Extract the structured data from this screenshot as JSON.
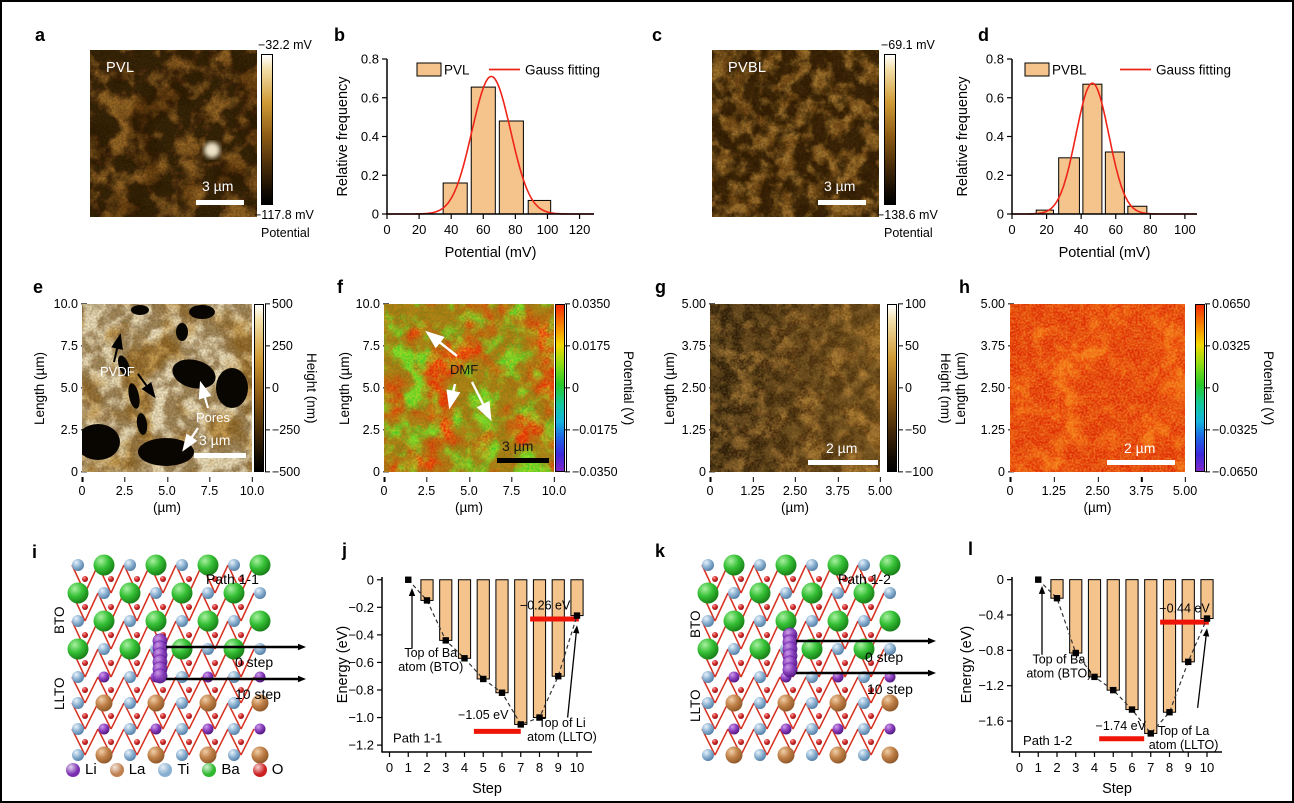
{
  "panels": {
    "a": {
      "letter": "a",
      "tag": "PVL",
      "scalebar": "3 µm",
      "cb_top": "−32.2 mV",
      "cb_bottom": "−117.8 mV",
      "cb_caption": "Potential"
    },
    "b": {
      "letter": "b"
    },
    "c": {
      "letter": "c",
      "tag": "PVBL",
      "scalebar": "3 µm",
      "cb_top": "−69.1 mV",
      "cb_bottom": "−138.6 mV",
      "cb_caption": "Potential"
    },
    "d": {
      "letter": "d"
    },
    "e": {
      "letter": "e",
      "ylabel": "Length (µm)",
      "xlabel": "(µm)",
      "yticks": [
        "10.0",
        "7.5",
        "5.0",
        "2.5",
        "0"
      ],
      "xticks": [
        "0",
        "2.5",
        "5.0",
        "7.5",
        "10.0"
      ],
      "cbticks": [
        "500",
        "250",
        "0",
        "−250",
        "−500"
      ],
      "cblabel": "Height (nm)",
      "ann_pvdf": "PVDF",
      "ann_pores": "Pores",
      "scalebar": "3 µm"
    },
    "f": {
      "letter": "f",
      "ylabel": "Length (µm)",
      "xlabel": "(µm)",
      "yticks": [
        "10.0",
        "7.5",
        "5.0",
        "2.5",
        "0"
      ],
      "xticks": [
        "0",
        "2.5",
        "5.0",
        "7.5",
        "10.0"
      ],
      "cbticks": [
        "0.0350",
        "0.0175",
        "0",
        "−0.0175",
        "−0.0350"
      ],
      "cblabel": "Potential (V)",
      "ann_dmf": "DMF",
      "scalebar": "3 µm"
    },
    "g": {
      "letter": "g",
      "ylabel": "Length (µm)",
      "xlabel": "(µm)",
      "yticks": [
        "5.00",
        "3.75",
        "2.50",
        "1.25",
        "0"
      ],
      "xticks": [
        "0",
        "1.25",
        "2.50",
        "3.75",
        "5.00"
      ],
      "cbticks": [
        "100",
        "50",
        "0",
        "−50",
        "−100"
      ],
      "cblabel": "Height (nm)",
      "scalebar": "2 µm"
    },
    "h": {
      "letter": "h",
      "ylabel": "Length (µm)",
      "xlabel": "(µm)",
      "yticks": [
        "5.00",
        "3.75",
        "2.50",
        "1.25",
        "0"
      ],
      "xticks": [
        "0",
        "1.25",
        "2.50",
        "3.75",
        "5.00"
      ],
      "cbticks": [
        "0.0650",
        "0.0325",
        "0",
        "−0.0325",
        "−0.0650"
      ],
      "cblabel": "Potential (V)",
      "scalebar": "2 µm"
    },
    "i": {
      "letter": "i",
      "path_label": "Path 1-1",
      "layer_top": "BTO",
      "layer_bottom": "LLTO",
      "arrow0": "0 step",
      "arrow10": "10 step",
      "legend": [
        {
          "element": "Li",
          "color": "#7a2fb0"
        },
        {
          "element": "La",
          "color": "#c08050"
        },
        {
          "element": "Ti",
          "color": "#86aed0"
        },
        {
          "element": "Ba",
          "color": "#2eb82e"
        },
        {
          "element": "O",
          "color": "#cc1f1f"
        }
      ]
    },
    "j": {
      "letter": "j"
    },
    "k": {
      "letter": "k",
      "path_label": "Path 1-2",
      "layer_top": "BTO",
      "layer_bottom": "LLTO",
      "arrow0": "0 step",
      "arrow10": "10 step"
    },
    "l": {
      "letter": "l"
    }
  },
  "chart_data": [
    {
      "id": "chart-b",
      "panel": "b",
      "type": "histogram",
      "xlabel": "Potential (mV)",
      "ylabel": "Relative frequency",
      "xlim": [
        0,
        129
      ],
      "ylim": [
        0,
        0.8
      ],
      "xticks": [
        {
          "v": 0,
          "l": "0"
        },
        {
          "v": 20,
          "l": "20"
        },
        {
          "v": 40,
          "l": "40"
        },
        {
          "v": 60,
          "l": "60"
        },
        {
          "v": 80,
          "l": "80"
        },
        {
          "v": 100,
          "l": "100"
        },
        {
          "v": 120,
          "l": "120"
        }
      ],
      "yticks": [
        {
          "v": 0,
          "l": "0"
        },
        {
          "v": 0.2,
          "l": "0.2"
        },
        {
          "v": 0.4,
          "l": "0.4"
        },
        {
          "v": 0.6,
          "l": "0.6"
        },
        {
          "v": 0.8,
          "l": "0.8"
        }
      ],
      "legend": {
        "bar": "PVL",
        "line": "Gauss fitting"
      },
      "bars": [
        {
          "center": 42.5,
          "width": 15,
          "height": 0.16
        },
        {
          "center": 60,
          "width": 15,
          "height": 0.655
        },
        {
          "center": 77.5,
          "width": 15,
          "height": 0.48
        },
        {
          "center": 95,
          "width": 14,
          "height": 0.07
        }
      ],
      "gauss": {
        "mean": 65,
        "sigma": 12,
        "amp": 0.71
      },
      "bar_color": "#f5c38c",
      "line_color": "#ee2418"
    },
    {
      "id": "chart-d",
      "panel": "d",
      "type": "histogram",
      "xlabel": "Potential (mV)",
      "ylabel": "Relative frequency",
      "xlim": [
        0,
        107
      ],
      "ylim": [
        0,
        0.8
      ],
      "xticks": [
        {
          "v": 0,
          "l": "0"
        },
        {
          "v": 20,
          "l": "20"
        },
        {
          "v": 40,
          "l": "40"
        },
        {
          "v": 60,
          "l": "60"
        },
        {
          "v": 80,
          "l": "80"
        },
        {
          "v": 100,
          "l": "100"
        }
      ],
      "yticks": [
        {
          "v": 0,
          "l": "0"
        },
        {
          "v": 0.2,
          "l": "0.2"
        },
        {
          "v": 0.4,
          "l": "0.4"
        },
        {
          "v": 0.6,
          "l": "0.6"
        },
        {
          "v": 0.8,
          "l": "0.8"
        }
      ],
      "legend": {
        "bar": "PVBL",
        "line": "Gauss fitting"
      },
      "bars": [
        {
          "center": 19,
          "width": 10,
          "height": 0.02
        },
        {
          "center": 33,
          "width": 12,
          "height": 0.29
        },
        {
          "center": 46.5,
          "width": 11,
          "height": 0.67
        },
        {
          "center": 59.5,
          "width": 11,
          "height": 0.32
        },
        {
          "center": 72.5,
          "width": 11,
          "height": 0.04
        }
      ],
      "gauss": {
        "mean": 46.5,
        "sigma": 9.5,
        "amp": 0.675
      },
      "bar_color": "#f5c38c",
      "line_color": "#ee2418"
    },
    {
      "id": "chart-j",
      "panel": "j",
      "type": "step-bar",
      "xlabel": "Step",
      "ylabel": "Energy (eV)",
      "xlim": [
        -0.4,
        10.8
      ],
      "ylim": [
        -1.25,
        0.02
      ],
      "xticks": [
        {
          "v": 0,
          "l": "0"
        },
        {
          "v": 1,
          "l": "1"
        },
        {
          "v": 2,
          "l": "2"
        },
        {
          "v": 3,
          "l": "3"
        },
        {
          "v": 4,
          "l": "4"
        },
        {
          "v": 5,
          "l": "5"
        },
        {
          "v": 6,
          "l": "6"
        },
        {
          "v": 7,
          "l": "7"
        },
        {
          "v": 8,
          "l": "8"
        },
        {
          "v": 9,
          "l": "9"
        },
        {
          "v": 10,
          "l": "10"
        }
      ],
      "yticks": [
        {
          "v": 0,
          "l": "0"
        },
        {
          "v": -0.2,
          "l": "−0.2"
        },
        {
          "v": -0.4,
          "l": "−0.4"
        },
        {
          "v": -0.6,
          "l": "−0.6"
        },
        {
          "v": -0.8,
          "l": "−0.8"
        },
        {
          "v": -1.0,
          "l": "−1.0"
        },
        {
          "v": -1.2,
          "l": "−1.2"
        }
      ],
      "steps": [
        1,
        2,
        3,
        4,
        5,
        6,
        7,
        8,
        9,
        10
      ],
      "values": [
        0,
        -0.15,
        -0.44,
        -0.57,
        -0.72,
        -0.82,
        -1.05,
        -1.0,
        -0.7,
        -0.26
      ],
      "bar_width": 0.65,
      "bar_color": "#f5c38c",
      "accent_color": "#ee1408",
      "annotations": {
        "start_text": [
          "Top of Ba",
          "atom (BTO)"
        ],
        "start_text_pos": {
          "x": 2.2,
          "y": -0.56
        },
        "start_arrow": {
          "x": 1.2,
          "y1": -0.5,
          "y2": -0.06
        },
        "min_text": "−1.05 eV",
        "min_text_pos": {
          "x": 5.0,
          "y": -1.01
        },
        "min_bar": {
          "x1": 4.5,
          "x2": 7.0,
          "y": -1.1
        },
        "end_text": "−0.26 eV",
        "end_text_pos": {
          "x": 8.3,
          "y": -0.215
        },
        "end_bar": {
          "x1": 7.5,
          "x2": 10.1,
          "y": -0.285
        },
        "end_note": [
          "Top of Li",
          "atom (LLTO)"
        ],
        "end_note_pos": {
          "x": 9.2,
          "y": -1.07
        },
        "end_arrow": {
          "x1": 9.5,
          "y1": -1.0,
          "x2": 10.0,
          "y2": -0.33
        },
        "path_label": "Path 1-1",
        "path_label_pos": {
          "x": 1.5,
          "y": -1.18
        }
      }
    },
    {
      "id": "chart-l",
      "panel": "l",
      "type": "step-bar",
      "xlabel": "Step",
      "ylabel": "Energy (eV)",
      "xlim": [
        -0.4,
        10.8
      ],
      "ylim": [
        -1.95,
        0.03
      ],
      "xticks": [
        {
          "v": 0,
          "l": "0"
        },
        {
          "v": 1,
          "l": "1"
        },
        {
          "v": 2,
          "l": "2"
        },
        {
          "v": 3,
          "l": "3"
        },
        {
          "v": 4,
          "l": "4"
        },
        {
          "v": 5,
          "l": "5"
        },
        {
          "v": 6,
          "l": "6"
        },
        {
          "v": 7,
          "l": "7"
        },
        {
          "v": 8,
          "l": "8"
        },
        {
          "v": 9,
          "l": "9"
        },
        {
          "v": 10,
          "l": "10"
        }
      ],
      "yticks": [
        {
          "v": 0,
          "l": "0"
        },
        {
          "v": -0.4,
          "l": "−0.4"
        },
        {
          "v": -0.8,
          "l": "−0.8"
        },
        {
          "v": -1.2,
          "l": "−1.2"
        },
        {
          "v": -1.6,
          "l": "−1.6"
        }
      ],
      "steps": [
        1,
        2,
        3,
        4,
        5,
        6,
        7,
        8,
        9,
        10
      ],
      "values": [
        0,
        -0.21,
        -0.83,
        -1.1,
        -1.25,
        -1.47,
        -1.74,
        -1.5,
        -0.93,
        -0.44
      ],
      "bar_width": 0.65,
      "bar_color": "#f5c38c",
      "accent_color": "#ee1408",
      "annotations": {
        "start_text": [
          "Top of Ba",
          "atom (BTO)"
        ],
        "start_text_pos": {
          "x": 2.1,
          "y": -0.95
        },
        "start_arrow": {
          "x": 1.2,
          "y1": -0.85,
          "y2": -0.07
        },
        "min_text": "−1.74 eV",
        "min_text_pos": {
          "x": 5.4,
          "y": -1.7
        },
        "min_bar": {
          "x1": 4.25,
          "x2": 6.65,
          "y": -1.8
        },
        "end_text": "−0.44 eV",
        "end_text_pos": {
          "x": 8.8,
          "y": -0.37
        },
        "end_bar": {
          "x1": 7.5,
          "x2": 10.1,
          "y": -0.48
        },
        "end_note": [
          "Top of La",
          "atom (LLTO)"
        ],
        "end_note_pos": {
          "x": 8.75,
          "y": -1.76
        },
        "end_arrow": {
          "x1": 9.5,
          "y1": -1.45,
          "x2": 10.0,
          "y2": -0.55
        },
        "path_label": "Path 1-2",
        "path_label_pos": {
          "x": 1.5,
          "y": -1.87
        }
      }
    }
  ]
}
